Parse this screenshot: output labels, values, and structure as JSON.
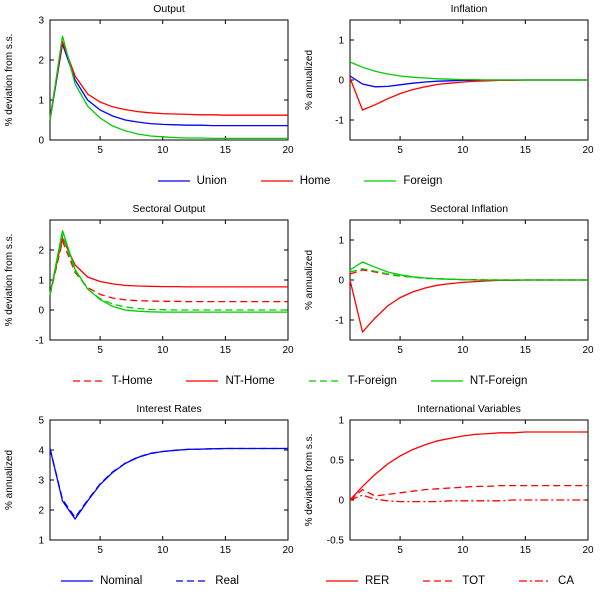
{
  "figure": {
    "background": "#ffffff"
  },
  "colors": {
    "blue": "#0000ff",
    "red": "#ff0000",
    "green": "#00cc00",
    "axis": "#000000"
  },
  "x": [
    1,
    2,
    3,
    4,
    5,
    6,
    7,
    8,
    9,
    10,
    11,
    12,
    13,
    14,
    15,
    16,
    17,
    18,
    19,
    20
  ],
  "chart_data": [
    {
      "type": "line",
      "title": "Output",
      "ylabel": "% deviation from s.s.",
      "xlim": [
        1,
        20
      ],
      "ylim": [
        0,
        3
      ],
      "xticks": [
        5,
        10,
        15,
        20
      ],
      "yticks": [
        0,
        1,
        2,
        3
      ],
      "series": [
        {
          "name": "Union",
          "color": "#0000ff",
          "dash": "solid",
          "y": [
            0.5,
            2.4,
            1.5,
            1.0,
            0.75,
            0.6,
            0.5,
            0.45,
            0.41,
            0.39,
            0.38,
            0.37,
            0.37,
            0.36,
            0.36,
            0.36,
            0.36,
            0.36,
            0.36,
            0.36
          ]
        },
        {
          "name": "Home",
          "color": "#ff0000",
          "dash": "solid",
          "y": [
            0.55,
            2.45,
            1.6,
            1.15,
            0.95,
            0.83,
            0.76,
            0.71,
            0.68,
            0.66,
            0.65,
            0.64,
            0.63,
            0.63,
            0.62,
            0.62,
            0.62,
            0.62,
            0.62,
            0.62
          ]
        },
        {
          "name": "Foreign",
          "color": "#00cc00",
          "dash": "solid",
          "y": [
            0.5,
            2.6,
            1.4,
            0.85,
            0.55,
            0.35,
            0.23,
            0.15,
            0.1,
            0.08,
            0.06,
            0.05,
            0.05,
            0.04,
            0.04,
            0.04,
            0.04,
            0.04,
            0.04,
            0.04
          ]
        }
      ]
    },
    {
      "type": "line",
      "title": "Inflation",
      "ylabel": "% annualized",
      "xlim": [
        1,
        20
      ],
      "ylim": [
        -1.5,
        1.5
      ],
      "xticks": [
        5,
        10,
        15,
        20
      ],
      "yticks": [
        -1,
        0,
        1
      ],
      "series": [
        {
          "name": "Union",
          "color": "#0000ff",
          "dash": "solid",
          "y": [
            0.1,
            -0.1,
            -0.17,
            -0.16,
            -0.12,
            -0.08,
            -0.05,
            -0.03,
            -0.02,
            -0.01,
            -0.01,
            0,
            0,
            0,
            0,
            0,
            0,
            0,
            0,
            0
          ]
        },
        {
          "name": "Home",
          "color": "#ff0000",
          "dash": "solid",
          "y": [
            0.05,
            -0.75,
            -0.62,
            -0.47,
            -0.34,
            -0.24,
            -0.17,
            -0.11,
            -0.08,
            -0.05,
            -0.03,
            -0.02,
            -0.01,
            -0.01,
            0,
            0,
            0,
            0,
            0,
            0
          ]
        },
        {
          "name": "Foreign",
          "color": "#00cc00",
          "dash": "solid",
          "y": [
            0.45,
            0.32,
            0.22,
            0.15,
            0.1,
            0.07,
            0.05,
            0.03,
            0.02,
            0.01,
            0.01,
            0,
            0,
            0,
            0,
            0,
            0,
            0,
            0,
            0
          ]
        }
      ]
    },
    {
      "type": "line",
      "title": "Sectoral Output",
      "ylabel": "% deviation from s.s.",
      "xlim": [
        1,
        20
      ],
      "ylim": [
        -1,
        3
      ],
      "xticks": [
        5,
        10,
        15,
        20
      ],
      "yticks": [
        -1,
        0,
        1,
        2
      ],
      "series": [
        {
          "name": "T-Home",
          "color": "#ff0000",
          "dash": "dashed",
          "y": [
            0.5,
            2.3,
            1.25,
            0.75,
            0.52,
            0.4,
            0.34,
            0.31,
            0.3,
            0.29,
            0.29,
            0.28,
            0.28,
            0.28,
            0.28,
            0.28,
            0.28,
            0.28,
            0.28,
            0.28
          ]
        },
        {
          "name": "NT-Home",
          "color": "#ff0000",
          "dash": "solid",
          "y": [
            0.55,
            2.4,
            1.5,
            1.1,
            0.95,
            0.87,
            0.82,
            0.8,
            0.79,
            0.78,
            0.78,
            0.77,
            0.77,
            0.77,
            0.77,
            0.77,
            0.77,
            0.77,
            0.77,
            0.77
          ]
        },
        {
          "name": "T-Foreign",
          "color": "#00cc00",
          "dash": "dashed",
          "y": [
            0.5,
            2.5,
            1.3,
            0.7,
            0.38,
            0.2,
            0.1,
            0.05,
            0.02,
            0.01,
            0,
            0,
            0,
            0,
            0,
            0,
            0,
            0,
            0,
            0
          ]
        },
        {
          "name": "NT-Foreign",
          "color": "#00cc00",
          "dash": "solid",
          "y": [
            0.5,
            2.65,
            1.35,
            0.7,
            0.35,
            0.12,
            0,
            -0.04,
            -0.06,
            -0.07,
            -0.07,
            -0.07,
            -0.07,
            -0.07,
            -0.07,
            -0.07,
            -0.07,
            -0.07,
            -0.07,
            -0.07
          ]
        }
      ]
    },
    {
      "type": "line",
      "title": "Sectoral Inflation",
      "ylabel": "% annualized",
      "xlim": [
        1,
        20
      ],
      "ylim": [
        -1.5,
        1.5
      ],
      "xticks": [
        5,
        10,
        15,
        20
      ],
      "yticks": [
        -1,
        0,
        1
      ],
      "series": [
        {
          "name": "T-Home",
          "color": "#ff0000",
          "dash": "dashed",
          "y": [
            0.15,
            0.25,
            0.2,
            0.14,
            0.1,
            0.07,
            0.05,
            0.03,
            0.02,
            0.01,
            0.01,
            0,
            0,
            0,
            0,
            0,
            0,
            0,
            0,
            0
          ]
        },
        {
          "name": "NT-Home",
          "color": "#ff0000",
          "dash": "solid",
          "y": [
            0,
            -1.3,
            -0.95,
            -0.65,
            -0.44,
            -0.3,
            -0.2,
            -0.13,
            -0.09,
            -0.06,
            -0.04,
            -0.02,
            -0.01,
            -0.01,
            0,
            0,
            0,
            0,
            0,
            0
          ]
        },
        {
          "name": "T-Foreign",
          "color": "#00cc00",
          "dash": "dashed",
          "y": [
            0.2,
            0.28,
            0.22,
            0.15,
            0.1,
            0.07,
            0.04,
            0.03,
            0.02,
            0.01,
            0,
            0,
            0,
            0,
            0,
            0,
            0,
            0,
            0,
            0
          ]
        },
        {
          "name": "NT-Foreign",
          "color": "#00cc00",
          "dash": "solid",
          "y": [
            0.25,
            0.45,
            0.32,
            0.2,
            0.13,
            0.08,
            0.05,
            0.03,
            0.02,
            0.01,
            0,
            0,
            0,
            0,
            0,
            0,
            0,
            0,
            0,
            0
          ]
        }
      ]
    },
    {
      "type": "line",
      "title": "Interest Rates",
      "ylabel": "% annualized",
      "xlim": [
        1,
        20
      ],
      "ylim": [
        1,
        5
      ],
      "xticks": [
        5,
        10,
        15,
        20
      ],
      "yticks": [
        1,
        2,
        3,
        4,
        5
      ],
      "series": [
        {
          "name": "Nominal",
          "color": "#0000ff",
          "dash": "solid",
          "y": [
            4.05,
            2.3,
            1.7,
            2.3,
            2.85,
            3.25,
            3.55,
            3.75,
            3.88,
            3.95,
            3.99,
            4.02,
            4.03,
            4.04,
            4.05,
            4.05,
            4.05,
            4.05,
            4.05,
            4.05
          ]
        },
        {
          "name": "Real",
          "color": "#0000ff",
          "dash": "dashed",
          "y": [
            4.05,
            2.35,
            1.75,
            2.33,
            2.87,
            3.27,
            3.56,
            3.76,
            3.89,
            3.95,
            3.99,
            4.02,
            4.03,
            4.04,
            4.05,
            4.05,
            4.05,
            4.05,
            4.05,
            4.05
          ]
        }
      ]
    },
    {
      "type": "line",
      "title": "International Variables",
      "ylabel": "% deviation from s.s.",
      "xlim": [
        1,
        20
      ],
      "ylim": [
        -0.5,
        1
      ],
      "xticks": [
        5,
        10,
        15,
        20
      ],
      "yticks": [
        -0.5,
        0,
        0.5,
        1
      ],
      "series": [
        {
          "name": "RER",
          "color": "#ff0000",
          "dash": "solid",
          "y": [
            0,
            0.17,
            0.32,
            0.45,
            0.55,
            0.63,
            0.69,
            0.74,
            0.77,
            0.8,
            0.82,
            0.83,
            0.84,
            0.84,
            0.85,
            0.85,
            0.85,
            0.85,
            0.85,
            0.85
          ]
        },
        {
          "name": "TOT",
          "color": "#ff0000",
          "dash": "dashed",
          "y": [
            0,
            0.13,
            0.05,
            0.07,
            0.09,
            0.11,
            0.13,
            0.14,
            0.15,
            0.16,
            0.17,
            0.17,
            0.18,
            0.18,
            0.18,
            0.18,
            0.18,
            0.18,
            0.18,
            0.18
          ]
        },
        {
          "name": "CA",
          "color": "#ff0000",
          "dash": "dashdot",
          "y": [
            0,
            0.06,
            0.01,
            -0.01,
            -0.02,
            -0.02,
            -0.02,
            -0.02,
            -0.01,
            -0.01,
            -0.01,
            -0.01,
            -0.01,
            0,
            0,
            0,
            0,
            0,
            0,
            0
          ]
        }
      ]
    }
  ],
  "legends": [
    {
      "items": [
        {
          "label": "Union",
          "color": "#0000ff",
          "dash": "solid"
        },
        {
          "label": "Home",
          "color": "#ff0000",
          "dash": "solid"
        },
        {
          "label": "Foreign",
          "color": "#00cc00",
          "dash": "solid"
        }
      ]
    },
    {
      "items": [
        {
          "label": "T-Home",
          "color": "#ff0000",
          "dash": "dashed"
        },
        {
          "label": "NT-Home",
          "color": "#ff0000",
          "dash": "solid"
        },
        {
          "label": "T-Foreign",
          "color": "#00cc00",
          "dash": "dashed"
        },
        {
          "label": "NT-Foreign",
          "color": "#00cc00",
          "dash": "solid"
        }
      ]
    },
    {
      "items": [
        {
          "label": "Nominal",
          "color": "#0000ff",
          "dash": "solid"
        },
        {
          "label": "Real",
          "color": "#0000ff",
          "dash": "dashed"
        }
      ]
    },
    {
      "items": [
        {
          "label": "RER",
          "color": "#ff0000",
          "dash": "solid"
        },
        {
          "label": "TOT",
          "color": "#ff0000",
          "dash": "dashed"
        },
        {
          "label": "CA",
          "color": "#ff0000",
          "dash": "dashdot"
        }
      ]
    }
  ]
}
